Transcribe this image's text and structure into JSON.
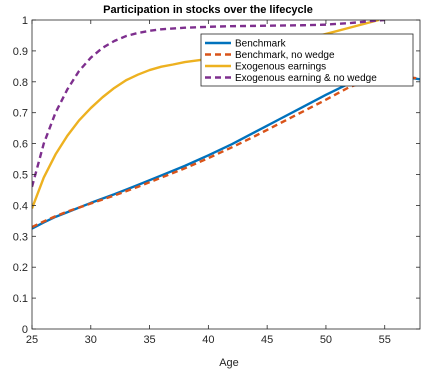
{
  "chart_data": {
    "type": "line",
    "title": "Participation in stocks over the lifecycle",
    "xlabel": "Age",
    "ylabel": "",
    "xlim": [
      25,
      58
    ],
    "ylim": [
      0,
      1
    ],
    "xticks": [
      25,
      30,
      35,
      40,
      45,
      50,
      55
    ],
    "yticks": [
      0,
      0.1,
      0.2,
      0.3,
      0.4,
      0.5,
      0.6,
      0.7,
      0.8,
      0.9,
      1
    ],
    "grid": false,
    "legend_position": "top-right",
    "series": [
      {
        "name": "Benchmark",
        "color": "#0072BD",
        "style": "solid",
        "x": [
          25,
          26,
          27,
          28,
          30,
          32,
          34,
          36,
          38,
          40,
          42,
          44,
          46,
          48,
          50,
          52,
          54,
          56,
          58
        ],
        "y": [
          0.325,
          0.345,
          0.363,
          0.378,
          0.408,
          0.436,
          0.466,
          0.497,
          0.528,
          0.562,
          0.598,
          0.638,
          0.678,
          0.718,
          0.758,
          0.795,
          0.82,
          0.82,
          0.808
        ]
      },
      {
        "name": "Benchmark, no wedge",
        "color": "#D95319",
        "style": "dashed",
        "x": [
          25,
          26,
          27,
          28,
          30,
          32,
          34,
          36,
          38,
          40,
          42,
          44,
          46,
          48,
          50,
          52,
          54,
          56,
          58
        ],
        "y": [
          0.33,
          0.348,
          0.365,
          0.38,
          0.406,
          0.432,
          0.46,
          0.49,
          0.52,
          0.553,
          0.588,
          0.625,
          0.664,
          0.703,
          0.742,
          0.783,
          0.81,
          0.82,
          0.81
        ]
      },
      {
        "name": "Exogenous earnings",
        "color": "#EDB120",
        "style": "solid",
        "x": [
          25,
          26,
          27,
          28,
          29,
          30,
          31,
          32,
          33,
          34,
          35,
          36,
          37,
          38,
          40,
          42,
          44,
          46,
          48,
          50,
          52,
          54.5
        ],
        "y": [
          0.39,
          0.49,
          0.565,
          0.625,
          0.675,
          0.715,
          0.75,
          0.78,
          0.805,
          0.823,
          0.838,
          0.849,
          0.856,
          0.864,
          0.874,
          0.885,
          0.9,
          0.915,
          0.935,
          0.955,
          0.975,
          1.0
        ]
      },
      {
        "name": "Exogenous earning & no wedge",
        "color": "#7E2F8E",
        "style": "dashed",
        "x": [
          25,
          26,
          27,
          28,
          29,
          30,
          31,
          32,
          33,
          34,
          35,
          36,
          38,
          40,
          42,
          44,
          46,
          48,
          50,
          52,
          54,
          55
        ],
        "y": [
          0.46,
          0.6,
          0.7,
          0.775,
          0.835,
          0.878,
          0.91,
          0.932,
          0.948,
          0.958,
          0.965,
          0.97,
          0.975,
          0.978,
          0.98,
          0.981,
          0.982,
          0.983,
          0.985,
          0.99,
          0.997,
          1.0
        ]
      }
    ]
  }
}
